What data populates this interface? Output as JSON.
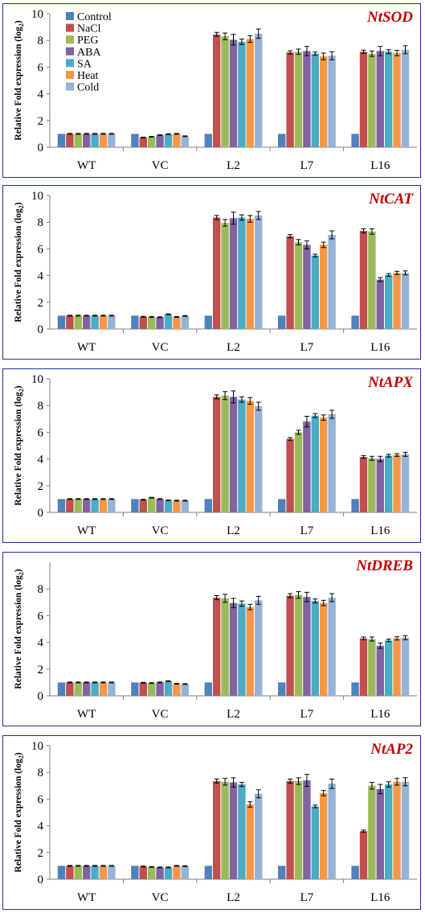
{
  "chart_data": [
    {
      "type": "bar",
      "title": "NtSOD",
      "ylabel": "Relative Fold expression (log2)",
      "ylim": [
        0,
        10
      ],
      "yticks": [
        0,
        2,
        4,
        6,
        8,
        10
      ],
      "categories": [
        "WT",
        "VC",
        "L2",
        "L7",
        "L16"
      ],
      "legend_position": "top-left",
      "series": [
        {
          "name": "Control",
          "color": "#4f81bd",
          "values": [
            1.0,
            1.0,
            1.0,
            1.0,
            1.0
          ],
          "errors": [
            0,
            0,
            0,
            0,
            0
          ]
        },
        {
          "name": "NaCl",
          "color": "#c0504d",
          "values": [
            1.0,
            0.72,
            8.45,
            7.1,
            7.15
          ],
          "errors": [
            0.03,
            0.03,
            0.15,
            0.12,
            0.12
          ]
        },
        {
          "name": "PEG",
          "color": "#9bbb59",
          "values": [
            1.0,
            0.78,
            8.3,
            7.15,
            7.0
          ],
          "errors": [
            0.03,
            0.03,
            0.25,
            0.2,
            0.2
          ]
        },
        {
          "name": "ABA",
          "color": "#8064a2",
          "values": [
            1.0,
            0.9,
            8.05,
            7.2,
            7.2
          ],
          "errors": [
            0.03,
            0.03,
            0.4,
            0.35,
            0.35
          ]
        },
        {
          "name": "SA",
          "color": "#4bacc6",
          "values": [
            1.0,
            0.98,
            7.9,
            7.0,
            7.15
          ],
          "errors": [
            0.03,
            0.03,
            0.2,
            0.12,
            0.15
          ]
        },
        {
          "name": "Heat",
          "color": "#f79646",
          "values": [
            1.0,
            1.0,
            8.1,
            6.8,
            7.05
          ],
          "errors": [
            0.03,
            0.03,
            0.25,
            0.25,
            0.2
          ]
        },
        {
          "name": "Cold",
          "color": "#95b3d7",
          "values": [
            1.0,
            0.82,
            8.5,
            6.85,
            7.3
          ],
          "errors": [
            0.03,
            0.03,
            0.35,
            0.3,
            0.3
          ]
        }
      ]
    },
    {
      "type": "bar",
      "title": "NtCAT",
      "ylabel": "Relative Fold expression (log2)",
      "ylim": [
        0,
        10
      ],
      "yticks": [
        0,
        2,
        4,
        6,
        8,
        10
      ],
      "categories": [
        "WT",
        "VC",
        "L2",
        "L7",
        "L16"
      ],
      "series": [
        {
          "name": "Control",
          "color": "#4f81bd",
          "values": [
            1.0,
            1.0,
            1.0,
            1.0,
            1.0
          ],
          "errors": [
            0,
            0,
            0,
            0,
            0
          ]
        },
        {
          "name": "NaCl",
          "color": "#c0504d",
          "values": [
            1.0,
            0.92,
            8.35,
            6.95,
            7.35
          ],
          "errors": [
            0.03,
            0.03,
            0.15,
            0.12,
            0.15
          ]
        },
        {
          "name": "PEG",
          "color": "#9bbb59",
          "values": [
            1.0,
            0.9,
            7.95,
            6.5,
            7.3
          ],
          "errors": [
            0.03,
            0.03,
            0.25,
            0.2,
            0.2
          ]
        },
        {
          "name": "ABA",
          "color": "#8064a2",
          "values": [
            1.0,
            0.88,
            8.3,
            6.3,
            3.7
          ],
          "errors": [
            0.03,
            0.03,
            0.45,
            0.3,
            0.15
          ]
        },
        {
          "name": "SA",
          "color": "#4bacc6",
          "values": [
            1.0,
            1.1,
            8.35,
            5.5,
            4.05
          ],
          "errors": [
            0.03,
            0.03,
            0.2,
            0.1,
            0.1
          ]
        },
        {
          "name": "Heat",
          "color": "#f79646",
          "values": [
            1.0,
            0.9,
            8.25,
            6.3,
            4.2
          ],
          "errors": [
            0.03,
            0.03,
            0.25,
            0.2,
            0.12
          ]
        },
        {
          "name": "Cold",
          "color": "#95b3d7",
          "values": [
            1.0,
            0.98,
            8.5,
            7.05,
            4.2
          ],
          "errors": [
            0.03,
            0.03,
            0.3,
            0.3,
            0.15
          ]
        }
      ]
    },
    {
      "type": "bar",
      "title": "NtAPX",
      "ylabel": "Relative Fold expression (log2)",
      "ylim": [
        0,
        10
      ],
      "yticks": [
        0,
        2,
        4,
        6,
        8,
        10
      ],
      "categories": [
        "WT",
        "VC",
        "L2",
        "L7",
        "L16"
      ],
      "series": [
        {
          "name": "Control",
          "color": "#4f81bd",
          "values": [
            1.0,
            1.0,
            1.0,
            1.0,
            1.0
          ],
          "errors": [
            0,
            0,
            0,
            0,
            0
          ]
        },
        {
          "name": "NaCl",
          "color": "#c0504d",
          "values": [
            1.0,
            0.95,
            8.65,
            5.5,
            4.15
          ],
          "errors": [
            0.03,
            0.03,
            0.15,
            0.1,
            0.1
          ]
        },
        {
          "name": "PEG",
          "color": "#9bbb59",
          "values": [
            1.0,
            1.1,
            8.75,
            6.0,
            4.05
          ],
          "errors": [
            0.03,
            0.03,
            0.3,
            0.15,
            0.15
          ]
        },
        {
          "name": "ABA",
          "color": "#8064a2",
          "values": [
            1.0,
            1.0,
            8.65,
            6.8,
            4.0
          ],
          "errors": [
            0.03,
            0.03,
            0.45,
            0.4,
            0.2
          ]
        },
        {
          "name": "SA",
          "color": "#4bacc6",
          "values": [
            1.0,
            0.9,
            8.45,
            7.25,
            4.25
          ],
          "errors": [
            0.03,
            0.03,
            0.2,
            0.15,
            0.1
          ]
        },
        {
          "name": "Heat",
          "color": "#f79646",
          "values": [
            1.0,
            0.88,
            8.35,
            7.1,
            4.3
          ],
          "errors": [
            0.03,
            0.03,
            0.25,
            0.2,
            0.1
          ]
        },
        {
          "name": "Cold",
          "color": "#95b3d7",
          "values": [
            1.0,
            0.88,
            7.95,
            7.35,
            4.35
          ],
          "errors": [
            0.03,
            0.03,
            0.3,
            0.3,
            0.15
          ]
        }
      ]
    },
    {
      "type": "bar",
      "title": "NtDREB",
      "ylabel": "Relative Fold expression (log2)",
      "ylim": [
        0,
        10
      ],
      "yticks": [
        0,
        2,
        4,
        6,
        8
      ],
      "categories": [
        "WT",
        "VC",
        "L2",
        "L7",
        "L16"
      ],
      "series": [
        {
          "name": "Control",
          "color": "#4f81bd",
          "values": [
            1.0,
            1.0,
            1.0,
            1.0,
            1.0
          ],
          "errors": [
            0,
            0,
            0,
            0,
            0
          ]
        },
        {
          "name": "NaCl",
          "color": "#c0504d",
          "values": [
            1.0,
            0.98,
            7.35,
            7.5,
            4.3
          ],
          "errors": [
            0.03,
            0.03,
            0.15,
            0.15,
            0.1
          ]
        },
        {
          "name": "PEG",
          "color": "#9bbb59",
          "values": [
            1.0,
            0.95,
            7.3,
            7.55,
            4.25
          ],
          "errors": [
            0.03,
            0.03,
            0.3,
            0.25,
            0.15
          ]
        },
        {
          "name": "ABA",
          "color": "#8064a2",
          "values": [
            1.0,
            1.0,
            6.95,
            7.4,
            3.75
          ],
          "errors": [
            0.03,
            0.03,
            0.35,
            0.35,
            0.2
          ]
        },
        {
          "name": "SA",
          "color": "#4bacc6",
          "values": [
            1.0,
            1.1,
            6.9,
            7.1,
            4.15
          ],
          "errors": [
            0.03,
            0.03,
            0.2,
            0.15,
            0.1
          ]
        },
        {
          "name": "Heat",
          "color": "#f79646",
          "values": [
            1.0,
            0.9,
            6.65,
            6.95,
            4.3
          ],
          "errors": [
            0.03,
            0.03,
            0.2,
            0.2,
            0.12
          ]
        },
        {
          "name": "Cold",
          "color": "#95b3d7",
          "values": [
            1.0,
            0.88,
            7.15,
            7.35,
            4.35
          ],
          "errors": [
            0.03,
            0.03,
            0.3,
            0.3,
            0.15
          ]
        }
      ]
    },
    {
      "type": "bar",
      "title": "NtAP2",
      "ylabel": "Relative Fold expression (log2)",
      "ylim": [
        0,
        10
      ],
      "yticks": [
        0,
        2,
        4,
        6,
        8,
        10
      ],
      "categories": [
        "WT",
        "VC",
        "L2",
        "L7",
        "L16"
      ],
      "series": [
        {
          "name": "Control",
          "color": "#4f81bd",
          "values": [
            1.0,
            1.0,
            1.0,
            1.0,
            1.0
          ],
          "errors": [
            0,
            0,
            0,
            0,
            0
          ]
        },
        {
          "name": "NaCl",
          "color": "#c0504d",
          "values": [
            1.0,
            0.95,
            7.35,
            7.35,
            3.6
          ],
          "errors": [
            0.03,
            0.03,
            0.15,
            0.15,
            0.08
          ]
        },
        {
          "name": "PEG",
          "color": "#9bbb59",
          "values": [
            1.0,
            0.92,
            7.3,
            7.35,
            7.0
          ],
          "errors": [
            0.03,
            0.03,
            0.25,
            0.25,
            0.25
          ]
        },
        {
          "name": "ABA",
          "color": "#8064a2",
          "values": [
            1.0,
            0.88,
            7.25,
            7.4,
            6.75
          ],
          "errors": [
            0.03,
            0.03,
            0.35,
            0.45,
            0.35
          ]
        },
        {
          "name": "SA",
          "color": "#4bacc6",
          "values": [
            1.0,
            0.88,
            7.1,
            5.45,
            7.1
          ],
          "errors": [
            0.03,
            0.03,
            0.15,
            0.1,
            0.2
          ]
        },
        {
          "name": "Heat",
          "color": "#f79646",
          "values": [
            1.0,
            1.0,
            5.6,
            6.45,
            7.3
          ],
          "errors": [
            0.03,
            0.03,
            0.2,
            0.2,
            0.25
          ]
        },
        {
          "name": "Cold",
          "color": "#95b3d7",
          "values": [
            1.0,
            0.98,
            6.4,
            7.15,
            7.3
          ],
          "errors": [
            0.03,
            0.03,
            0.3,
            0.35,
            0.3
          ]
        }
      ]
    }
  ]
}
